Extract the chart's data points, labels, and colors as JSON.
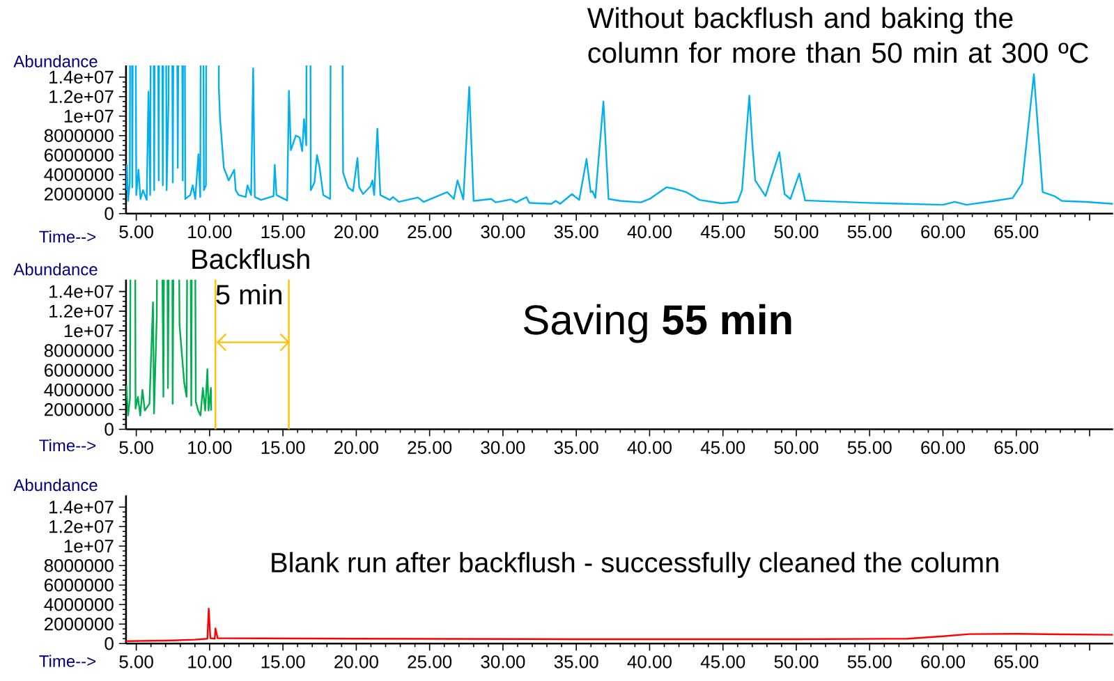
{
  "chart_data": [
    {
      "type": "line",
      "title": "Without backflush and baking the column for more than 50 min at 300 ºC",
      "xlabel": "Time-->",
      "ylabel": "Abundance",
      "xlim": [
        4.3,
        71.6
      ],
      "ylim": [
        0,
        15200000.0
      ],
      "xticks": [
        {
          "value": 5,
          "label": "5.00"
        },
        {
          "value": 10,
          "label": "10.00"
        },
        {
          "value": 15,
          "label": "15.00"
        },
        {
          "value": 20,
          "label": "20.00"
        },
        {
          "value": 25,
          "label": "25.00"
        },
        {
          "value": 30,
          "label": "30.00"
        },
        {
          "value": 35,
          "label": "35.00"
        },
        {
          "value": 40,
          "label": "40.00"
        },
        {
          "value": 45,
          "label": "45.00"
        },
        {
          "value": 50,
          "label": "50.00"
        },
        {
          "value": 55,
          "label": "55.00"
        },
        {
          "value": 60,
          "label": "60.00"
        },
        {
          "value": 65,
          "label": "65.00"
        },
        {
          "value": 70,
          "label": null
        }
      ],
      "yticks": [
        0,
        2000000,
        4000000,
        6000000,
        8000000,
        {
          "value": 10000000,
          "label": "1e+07"
        },
        {
          "value": 12000000,
          "label": "1.2e+07"
        },
        {
          "value": 14000000,
          "label": "1.4e+07"
        }
      ],
      "series": [
        {
          "color": "#00b0f0",
          "x": [
            4.3,
            4.36,
            4.44,
            4.56,
            4.64,
            4.73,
            4.86,
            5.0,
            5.15,
            5.29,
            5.46,
            5.71,
            5.83,
            5.95,
            6.08,
            6.22,
            6.36,
            6.53,
            6.64,
            6.81,
            6.93,
            7.07,
            7.2,
            7.32,
            7.49,
            7.66,
            7.83,
            8.0,
            8.17,
            8.25,
            8.34,
            8.68,
            8.85,
            9.02,
            9.24,
            9.36,
            9.49,
            9.61,
            9.75,
            9.83,
            10.59,
            10.63,
            10.71,
            10.97,
            11.3,
            11.68,
            11.78,
            11.98,
            12.46,
            12.58,
            12.83,
            12.97,
            13.08,
            13.5,
            14.36,
            14.44,
            14.56,
            15.29,
            15.41,
            15.54,
            15.88,
            16.14,
            16.31,
            16.44,
            16.59,
            16.69,
            16.8,
            16.9,
            17.15,
            17.32,
            17.49,
            17.75,
            18.22,
            18.34,
            18.93,
            19.1,
            19.44,
            19.78,
            20.08,
            20.2,
            20.46,
            20.97,
            21.1,
            21.22,
            21.44,
            21.64,
            22.29,
            22.5,
            22.9,
            24.2,
            24.6,
            26.2,
            26.65,
            26.9,
            27.3,
            27.7,
            28.0,
            29.2,
            29.5,
            30.55,
            30.9,
            31.6,
            31.8,
            33.3,
            33.6,
            33.9,
            34.7,
            35.2,
            35.7,
            35.98,
            36.1,
            36.3,
            36.85,
            37.2,
            38.0,
            39.4,
            40.0,
            41.15,
            41.7,
            42.5,
            43.4,
            44.9,
            46.0,
            46.3,
            46.8,
            47.0,
            47.2,
            47.9,
            48.85,
            49.2,
            49.6,
            50.2,
            50.6,
            54.9,
            60.0,
            60.8,
            61.6,
            63.5,
            64.75,
            65.4,
            66.2,
            66.8,
            67.6,
            68.1,
            69.8,
            71.6
          ],
          "values": [
            2400000.0,
            5000000.0,
            1300000.0,
            3200000.0,
            null,
            2700000.0,
            null,
            1900000.0,
            4500000.0,
            1500000.0,
            2400000.0,
            1400000.0,
            12500000.0,
            1900000.0,
            null,
            2400000.0,
            null,
            3400000.0,
            null,
            2900000.0,
            null,
            2400000.0,
            11600000.0,
            null,
            3200000.0,
            null,
            4700000.0,
            null,
            3400000.0,
            null,
            1500000.0,
            1900000.0,
            2900000.0,
            1500000.0,
            6100000.0,
            1700000.0,
            null,
            2400000.0,
            2900000.0,
            null,
            null,
            12900000.0,
            9800000.0,
            4700000.0,
            3400000.0,
            4500000.0,
            2400000.0,
            1900000.0,
            1700000.0,
            2900000.0,
            1900000.0,
            14900000.0,
            1700000.0,
            1400000.0,
            1800000.0,
            5000000.0,
            1900000.0,
            1350000.0,
            12600000.0,
            6500000.0,
            8000000.0,
            7800000.0,
            6400000.0,
            9700000.0,
            7000000.0,
            null,
            null,
            2400000.0,
            3200000.0,
            6000000.0,
            4800000.0,
            1900000.0,
            1500000.0,
            null,
            null,
            4200000.0,
            2700000.0,
            2300000.0,
            5700000.0,
            2700000.0,
            2000000.0,
            2800000.0,
            3400000.0,
            1900000.0,
            8700000.0,
            1900000.0,
            1400000.0,
            1700000.0,
            1200000.0,
            1650000.0,
            1200000.0,
            2200000.0,
            1500000.0,
            3400000.0,
            1450000.0,
            13000000.0,
            1300000.0,
            1500000.0,
            1150000.0,
            1450000.0,
            1150000.0,
            1700000.0,
            1100000.0,
            1000000.0,
            1300000.0,
            1000000.0,
            2000000.0,
            1400000.0,
            5600000.0,
            2200000.0,
            2300000.0,
            1600000.0,
            11500000.0,
            1500000.0,
            1300000.0,
            1150000.0,
            1500000.0,
            2700000.0,
            2550000.0,
            2200000.0,
            1400000.0,
            1050000.0,
            1200000.0,
            2400000.0,
            12100000.0,
            7200000.0,
            3400000.0,
            1800000.0,
            6300000.0,
            2000000.0,
            1500000.0,
            4100000.0,
            1350000.0,
            1100000.0,
            900000.0,
            1200000.0,
            900000.0,
            1300000.0,
            1600000.0,
            3100000.0,
            14300000.0,
            2200000.0,
            1800000.0,
            1300000.0,
            1200000.0,
            1000000.0
          ]
        }
      ]
    },
    {
      "type": "line",
      "xlabel": "Time-->",
      "ylabel": "Abundance",
      "annotations": [
        "Backflush",
        "5 min",
        "Saving **55 min**"
      ],
      "xlim": [
        4.3,
        71.6
      ],
      "ylim": [
        0,
        15200000.0
      ],
      "xticks": [
        {
          "value": 5,
          "label": "5.00"
        },
        {
          "value": 10,
          "label": "10.00"
        },
        {
          "value": 15,
          "label": "15.00"
        },
        {
          "value": 20,
          "label": "20.00"
        },
        {
          "value": 25,
          "label": "25.00"
        },
        {
          "value": 30,
          "label": "30.00"
        },
        {
          "value": 35,
          "label": "35.00"
        },
        {
          "value": 40,
          "label": "40.00"
        },
        {
          "value": 45,
          "label": "45.00"
        },
        {
          "value": 50,
          "label": "50.00"
        },
        {
          "value": 55,
          "label": "55.00"
        },
        {
          "value": 60,
          "label": "60.00"
        },
        {
          "value": 65,
          "label": "65.00"
        },
        {
          "value": 70,
          "label": null
        }
      ],
      "yticks": [
        0,
        2000000,
        4000000,
        6000000,
        8000000,
        {
          "value": 10000000,
          "label": "1e+07"
        },
        {
          "value": 12000000,
          "label": "1.2e+07"
        },
        {
          "value": 14000000,
          "label": "1.4e+07"
        }
      ],
      "ref_lines": [
        {
          "axis": "x",
          "value": 10.4,
          "color": "#ffc000"
        },
        {
          "axis": "x",
          "value": 15.4,
          "color": "#ffc000"
        }
      ],
      "series": [
        {
          "color": "#00b050",
          "x": [
            4.32,
            4.44,
            4.57,
            4.71,
            4.87,
            4.95,
            5.11,
            5.27,
            5.42,
            5.58,
            5.9,
            6.14,
            6.21,
            6.4,
            6.53,
            6.85,
            7.01,
            7.16,
            7.4,
            7.48,
            7.72,
            7.95,
            8.27,
            8.43,
            8.59,
            8.75,
            8.9,
            9.06,
            9.22,
            9.38,
            9.54,
            9.7,
            9.85,
            9.93,
            10.09,
            10.11
          ],
          "values": [
            4500000.0,
            1400000.0,
            3100000.0,
            null,
            null,
            2100000.0,
            3300000.0,
            1400000.0,
            4000000.0,
            1900000.0,
            2600000.0,
            12900000.0,
            1600000.0,
            11500000.0,
            null,
            3300000.0,
            null,
            4200000.0,
            null,
            2600000.0,
            null,
            10600000.0,
            4700000.0,
            3300000.0,
            null,
            2400000.0,
            null,
            2800000.0,
            1900000.0,
            1400000.0,
            4200000.0,
            1900000.0,
            6100000.0,
            1900000.0,
            4200000.0,
            1900000.0
          ]
        }
      ]
    },
    {
      "type": "line",
      "xlabel": "Time-->",
      "ylabel": "Abundance",
      "annotations": [
        "Blank run after backflush - successfully cleaned the column"
      ],
      "xlim": [
        4.3,
        71.6
      ],
      "ylim": [
        0,
        15200000.0
      ],
      "xticks": [
        {
          "value": 5,
          "label": "5.00"
        },
        {
          "value": 10,
          "label": "10.00"
        },
        {
          "value": 15,
          "label": "15.00"
        },
        {
          "value": 20,
          "label": "20.00"
        },
        {
          "value": 25,
          "label": "25.00"
        },
        {
          "value": 30,
          "label": "30.00"
        },
        {
          "value": 35,
          "label": "35.00"
        },
        {
          "value": 40,
          "label": "40.00"
        },
        {
          "value": 45,
          "label": "45.00"
        },
        {
          "value": 50,
          "label": "50.00"
        },
        {
          "value": 55,
          "label": "55.00"
        },
        {
          "value": 60,
          "label": "60.00"
        },
        {
          "value": 65,
          "label": "65.00"
        },
        {
          "value": 70,
          "label": null
        }
      ],
      "yticks": [
        0,
        2000000,
        4000000,
        6000000,
        8000000,
        {
          "value": 10000000,
          "label": "1e+07"
        },
        {
          "value": 12000000,
          "label": "1.2e+07"
        },
        {
          "value": 14000000,
          "label": "1.4e+07"
        }
      ],
      "series": [
        {
          "color": "#ff0000",
          "x": [
            4.3,
            7.0,
            9.0,
            9.85,
            9.94,
            10.05,
            10.35,
            10.4,
            10.55,
            20.0,
            35.0,
            50.0,
            57.6,
            60.0,
            61.8,
            65.0,
            68.0,
            71.6
          ],
          "values": [
            250000.0,
            300000.0,
            400000.0,
            500000.0,
            3600000.0,
            550000.0,
            500000.0,
            1550000.0,
            550000.0,
            500000.0,
            450000.0,
            450000.0,
            500000.0,
            750000.0,
            970000.0,
            1000000.0,
            950000.0,
            900000.0
          ]
        }
      ]
    }
  ]
}
